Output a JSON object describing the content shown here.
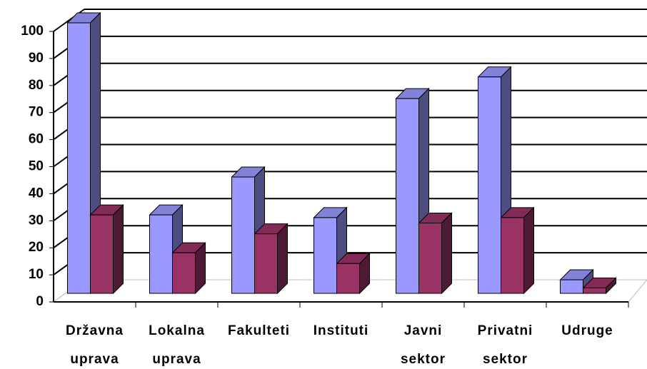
{
  "chart_data": {
    "type": "bar3d",
    "categories": [
      "Državna uprava",
      "Lokalna uprava",
      "Fakulteti",
      "Instituti",
      "Javni sektor",
      "Privatni sektor",
      "Udruge"
    ],
    "series": [
      {
        "color": "#9999ff",
        "values": [
          100,
          29,
          43,
          28,
          72,
          80,
          5
        ]
      },
      {
        "color": "#993366",
        "values": [
          29,
          15,
          22,
          11,
          26,
          28,
          2
        ]
      }
    ],
    "ylim": [
      0,
      100
    ],
    "yticks": [
      0,
      10,
      20,
      30,
      40,
      50,
      60,
      70,
      80,
      90,
      100
    ],
    "grid": true
  }
}
